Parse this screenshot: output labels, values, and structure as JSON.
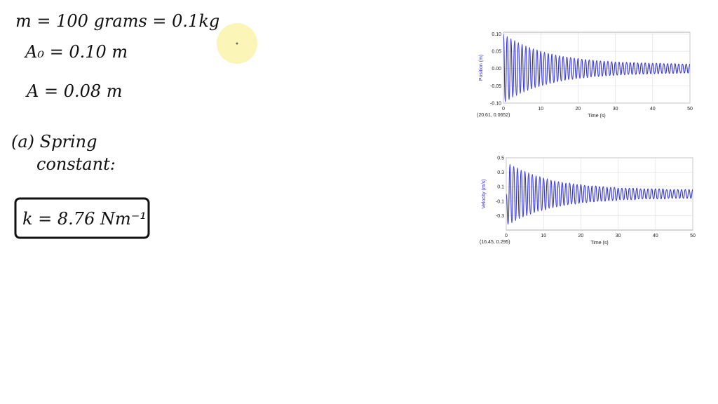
{
  "notes": [
    "m = 100 grams = 0.1kg",
    "A₀ = 0.10 m",
    "A = 0.08 m",
    "(a) Spring",
    "constant:",
    "k = 8.76 Nm⁻¹"
  ],
  "chart_data": [
    {
      "type": "line",
      "ylabel": "Position (m)",
      "xlabel": "Time (s)",
      "readout": "(20.61, 0.0652)",
      "color": "#2f2fd8",
      "grid": true,
      "xlim": [
        0,
        50
      ],
      "xticks": [
        0,
        10,
        20,
        30,
        40,
        50
      ],
      "ylim": [
        -0.1,
        0.105
      ],
      "yticks": [
        {
          "value": 0.1,
          "label": "0.10"
        },
        0.05,
        {
          "value": 0,
          "label": "0.00"
        },
        -0.05,
        {
          "value": -0.1,
          "label": "-0.10"
        }
      ],
      "x": [
        0,
        0.5,
        1,
        1.5,
        2,
        2.5,
        3,
        3.5,
        4,
        4.5,
        5,
        5.5,
        6,
        6.5,
        7,
        7.5,
        8,
        8.5,
        9,
        9.5,
        10,
        10.5,
        11,
        11.5,
        12,
        12.5,
        13,
        13.5,
        14,
        14.5,
        15,
        15.5,
        16,
        16.5,
        17,
        17.5,
        18,
        18.5,
        19,
        19.5,
        20,
        20.5,
        21,
        21.5,
        22,
        22.5,
        23,
        23.5,
        24,
        24.5,
        25,
        25.5,
        26,
        26.5,
        27,
        27.5,
        28,
        28.5,
        29,
        29.5,
        30,
        30.5,
        31,
        31.5,
        32,
        32.5,
        33,
        33.5,
        34,
        34.5,
        35,
        35.5,
        36,
        36.5,
        37,
        37.5,
        38,
        38.5,
        39,
        39.5,
        40,
        40.5,
        41,
        41.5,
        42,
        42.5,
        43,
        43.5,
        44,
        44.5,
        45,
        45.5,
        46,
        46.5,
        47,
        47.5,
        48,
        48.5,
        49,
        49.5,
        50
      ],
      "values": [
        0.1,
        -0.096,
        0.093,
        -0.09,
        0.086,
        -0.083,
        0.081,
        -0.078,
        0.075,
        -0.072,
        0.07,
        -0.068,
        0.065,
        -0.063,
        0.061,
        -0.059,
        0.057,
        -0.055,
        0.054,
        -0.052,
        0.05,
        -0.049,
        0.047,
        -0.046,
        0.044,
        -0.043,
        0.042,
        -0.041,
        0.039,
        -0.038,
        0.037,
        -0.036,
        0.035,
        -0.034,
        0.033,
        -0.032,
        0.032,
        -0.031,
        0.03,
        -0.029,
        0.029,
        -0.028,
        0.027,
        -0.027,
        0.026,
        -0.026,
        0.025,
        -0.024,
        0.024,
        -0.023,
        0.023,
        -0.023,
        0.022,
        -0.022,
        0.021,
        -0.021,
        0.021,
        -0.02,
        0.02,
        -0.02,
        0.019,
        -0.019,
        0.019,
        -0.018,
        0.018,
        -0.018,
        0.018,
        -0.017,
        0.017,
        -0.017,
        0.017,
        -0.017,
        0.016,
        -0.016,
        0.016,
        -0.016,
        0.016,
        -0.016,
        0.015,
        -0.015,
        0.015,
        -0.015,
        0.015,
        -0.015,
        0.015,
        -0.014,
        0.014,
        -0.014,
        0.014,
        -0.014,
        0.014,
        -0.014,
        0.014,
        -0.014,
        0.013,
        -0.013,
        0.013,
        -0.013,
        0.013,
        -0.013,
        0.013
      ]
    },
    {
      "type": "line",
      "ylabel": "Velocity (m/s)",
      "xlabel": "Time (s)",
      "readout": "(16.45, 0.295)",
      "color": "#2f2fd8",
      "grid": true,
      "xlim": [
        0,
        50
      ],
      "xticks": [
        0,
        10,
        20,
        30,
        40,
        50
      ],
      "ylim": [
        -0.5,
        0.5
      ],
      "yticks": [
        0.5,
        0.3,
        0.1,
        -0.1,
        -0.3
      ],
      "x": [
        0,
        0.5,
        1,
        1.5,
        2,
        2.5,
        3,
        3.5,
        4,
        4.5,
        5,
        5.5,
        6,
        6.5,
        7,
        7.5,
        8,
        8.5,
        9,
        9.5,
        10,
        10.5,
        11,
        11.5,
        12,
        12.5,
        13,
        13.5,
        14,
        14.5,
        15,
        15.5,
        16,
        16.5,
        17,
        17.5,
        18,
        18.5,
        19,
        19.5,
        20,
        20.5,
        21,
        21.5,
        22,
        22.5,
        23,
        23.5,
        24,
        24.5,
        25,
        25.5,
        26,
        26.5,
        27,
        27.5,
        28,
        28.5,
        29,
        29.5,
        30,
        30.5,
        31,
        31.5,
        32,
        32.5,
        33,
        33.5,
        34,
        34.5,
        35,
        35.5,
        36,
        36.5,
        37,
        37.5,
        38,
        38.5,
        39,
        39.5,
        40,
        40.5,
        41,
        41.5,
        42,
        42.5,
        43,
        43.5,
        44,
        44.5,
        45,
        45.5,
        46,
        46.5,
        47,
        47.5,
        48,
        48.5,
        49,
        49.5,
        50
      ],
      "values": [
        0,
        -0.42,
        0.41,
        -0.4,
        0.38,
        -0.37,
        0.36,
        -0.34,
        0.33,
        -0.32,
        0.31,
        -0.3,
        0.29,
        -0.28,
        0.27,
        -0.26,
        0.25,
        -0.24,
        0.24,
        -0.23,
        0.22,
        -0.22,
        0.21,
        -0.2,
        0.19,
        -0.19,
        0.18,
        -0.18,
        0.17,
        -0.17,
        0.16,
        -0.16,
        0.15,
        -0.15,
        0.15,
        -0.14,
        0.14,
        -0.14,
        0.13,
        -0.13,
        0.13,
        -0.12,
        0.12,
        -0.12,
        0.11,
        -0.11,
        0.11,
        -0.11,
        0.11,
        -0.1,
        0.1,
        -0.1,
        0.1,
        -0.1,
        0.09,
        -0.09,
        0.09,
        -0.09,
        0.09,
        -0.09,
        0.08,
        -0.08,
        0.08,
        -0.08,
        0.08,
        -0.08,
        0.08,
        -0.08,
        0.08,
        -0.08,
        0.08,
        -0.07,
        0.07,
        -0.07,
        0.07,
        -0.07,
        0.07,
        -0.07,
        0.07,
        -0.07,
        0.07,
        -0.07,
        0.07,
        -0.07,
        0.07,
        -0.07,
        0.06,
        -0.06,
        0.06,
        -0.06,
        0.06,
        -0.06,
        0.06,
        -0.06,
        0.06,
        -0.06,
        0.06,
        -0.06,
        0.06,
        -0.06,
        0.06
      ]
    }
  ]
}
